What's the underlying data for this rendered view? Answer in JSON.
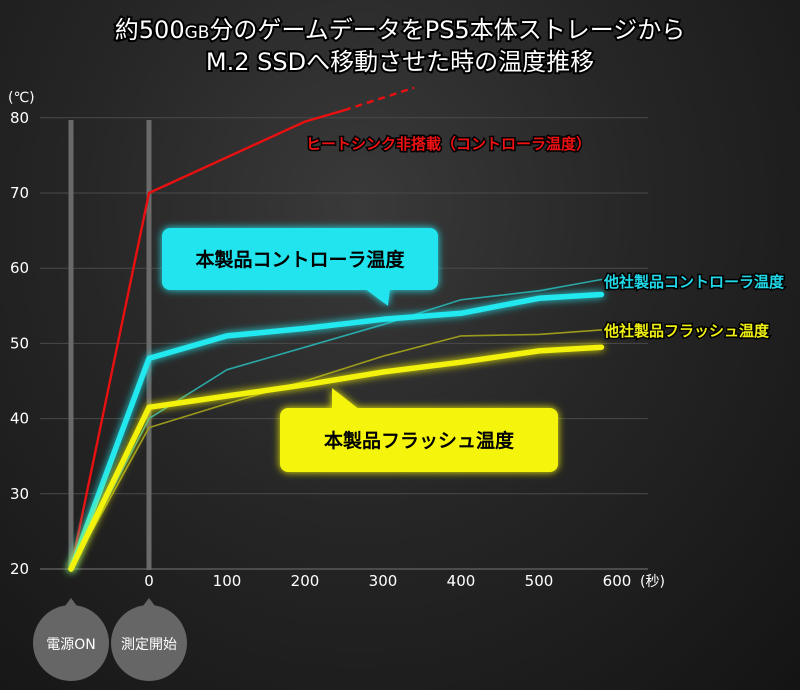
{
  "title": {
    "line1_prefix": "約500",
    "line1_unit": "GB",
    "line1_suffix": "分のゲームデータをPS5本体ストレージから",
    "line2": "M.2 SSDへ移動させた時の温度推移"
  },
  "colors": {
    "heatsinkless": "#e81010",
    "own_controller": "#20e8f0",
    "own_flash": "#f2f20a",
    "other_controller": "#2aa6a6",
    "other_flash": "#9a9a1c",
    "marker": "#666666",
    "grid": "#4a4a4a"
  },
  "markers": [
    {
      "label": "電源ON",
      "x": -100
    },
    {
      "label": "測定開始",
      "x": 0
    }
  ],
  "callouts": {
    "own_controller": "本製品コントローラ温度",
    "own_flash": "本製品フラッシュ温度"
  },
  "chart_data": {
    "type": "line",
    "xlabel": "(秒)",
    "ylabel": "(℃)",
    "xlim": [
      -100,
      600
    ],
    "ylim": [
      20,
      80
    ],
    "xticks": [
      0,
      100,
      200,
      300,
      400,
      500,
      600
    ],
    "yticks": [
      20,
      30,
      40,
      50,
      60,
      70,
      80
    ],
    "grid": true,
    "series": [
      {
        "key": "heatsinkless",
        "name": "ヒートシンク非搭載（コントローラ温度）",
        "points": [
          [
            -100,
            20
          ],
          [
            0,
            70
          ],
          [
            200,
            79.5
          ],
          [
            250,
            81
          ]
        ],
        "dashed_points": [
          [
            250,
            81
          ],
          [
            340,
            84
          ]
        ]
      },
      {
        "key": "own_controller",
        "name": "本製品コントローラ温度",
        "points": [
          [
            -100,
            20
          ],
          [
            0,
            48
          ],
          [
            100,
            51
          ],
          [
            200,
            52
          ],
          [
            300,
            53.2
          ],
          [
            400,
            54
          ],
          [
            500,
            56
          ],
          [
            580,
            56.5
          ]
        ]
      },
      {
        "key": "own_flash",
        "name": "本製品フラッシュ温度",
        "points": [
          [
            -100,
            20
          ],
          [
            0,
            41.5
          ],
          [
            100,
            43
          ],
          [
            200,
            44.5
          ],
          [
            300,
            46.2
          ],
          [
            400,
            47.5
          ],
          [
            500,
            49
          ],
          [
            580,
            49.5
          ]
        ]
      },
      {
        "key": "other_controller",
        "name": "他社製品コントローラ温度",
        "points": [
          [
            -100,
            20
          ],
          [
            0,
            40
          ],
          [
            100,
            46.5
          ],
          [
            200,
            49.5
          ],
          [
            300,
            52.5
          ],
          [
            400,
            55.8
          ],
          [
            500,
            57
          ],
          [
            580,
            58.5
          ]
        ]
      },
      {
        "key": "other_flash",
        "name": "他社製品フラッシュ温度",
        "points": [
          [
            -100,
            20
          ],
          [
            0,
            38.8
          ],
          [
            100,
            42
          ],
          [
            200,
            45
          ],
          [
            300,
            48.3
          ],
          [
            400,
            51
          ],
          [
            500,
            51.2
          ],
          [
            580,
            51.8
          ]
        ]
      }
    ]
  }
}
